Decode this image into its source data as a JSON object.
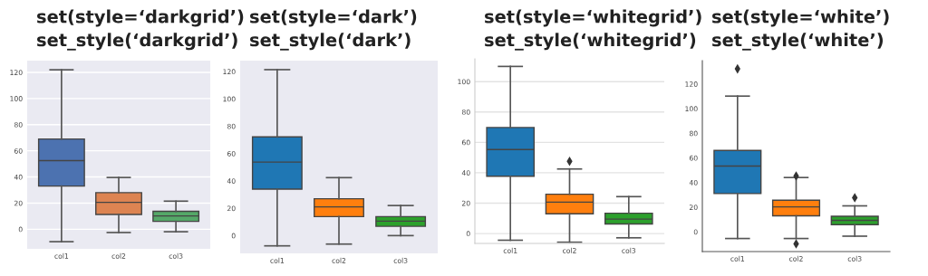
{
  "chart_data": [
    {
      "type": "box",
      "title": "set(style=‘darkgrid’)",
      "subtitle": "set_style(‘darkgrid’)",
      "categories": [
        "col1",
        "col2",
        "col3"
      ],
      "colors": [
        "#4c72b0",
        "#dd8452",
        "#55a868"
      ],
      "ylim": [
        -15,
        129
      ],
      "yticks": [
        0,
        20,
        40,
        60,
        80,
        100,
        120
      ],
      "grid": "y",
      "boxes": [
        {
          "low": -9.5,
          "q1": 33,
          "median": 52.5,
          "q3": 69,
          "high": 122
        },
        {
          "low": -2.5,
          "q1": 11.3,
          "median": 20.6,
          "q3": 28,
          "high": 39.6
        },
        {
          "low": -1.9,
          "q1": 6,
          "median": 10.2,
          "q3": 13.7,
          "high": 21.5
        }
      ]
    },
    {
      "type": "box",
      "title": "set(style=‘dark’)",
      "subtitle": "set_style(‘dark’)",
      "categories": [
        "col1",
        "col2",
        "col3"
      ],
      "colors": [
        "#1f77b4",
        "#ff7f0e",
        "#2ca02c"
      ],
      "ylim": [
        -13,
        128
      ],
      "yticks": [
        0,
        20,
        40,
        60,
        80,
        100,
        120
      ],
      "grid": false,
      "boxes": [
        {
          "low": -7.5,
          "q1": 34,
          "median": 53.8,
          "q3": 72.2,
          "high": 121.4
        },
        {
          "low": -6.2,
          "q1": 13.9,
          "median": 21,
          "q3": 27,
          "high": 42.4
        },
        {
          "low": 0,
          "q1": 6.8,
          "median": 10.6,
          "q3": 13.9,
          "high": 22
        }
      ]
    },
    {
      "type": "box",
      "title": "set(style=‘whitegrid’)",
      "subtitle": "set_style(‘whitegrid’)",
      "categories": [
        "col1",
        "col2",
        "col3"
      ],
      "colors": [
        "#1f77b4",
        "#ff7f0e",
        "#2ca02c"
      ],
      "ylim": [
        -6.5,
        115
      ],
      "yticks": [
        0,
        20,
        40,
        60,
        80,
        100
      ],
      "grid": "y",
      "boxes": [
        {
          "low": -4.4,
          "q1": 37.7,
          "median": 55.3,
          "q3": 69.8,
          "high": 110
        },
        {
          "low": -5.7,
          "q1": 13,
          "median": 20.7,
          "q3": 25.9,
          "high": 42.5,
          "outliers": [
            47.6
          ]
        },
        {
          "low": -2.8,
          "q1": 6.3,
          "median": 9.5,
          "q3": 13.4,
          "high": 24.3
        }
      ]
    },
    {
      "type": "box",
      "title": "set(style=‘white’)",
      "subtitle": "set_style(‘white’)",
      "categories": [
        "col1",
        "col2",
        "col3"
      ],
      "colors": [
        "#1f77b4",
        "#ff7f0e",
        "#2ca02c"
      ],
      "ylim": [
        -16,
        139
      ],
      "yticks": [
        0,
        20,
        40,
        60,
        80,
        100,
        120
      ],
      "grid": false,
      "boxes": [
        {
          "low": -5.4,
          "q1": 31.1,
          "median": 53.4,
          "q3": 66.1,
          "high": 110.2,
          "outliers": [
            132.3
          ]
        },
        {
          "low": -5.4,
          "q1": 13,
          "median": 20.3,
          "q3": 25.7,
          "high": 44.1,
          "outliers": [
            45.3,
            -9.8
          ]
        },
        {
          "low": -3.5,
          "q1": 5.9,
          "median": 9.3,
          "q3": 12.7,
          "high": 21.1,
          "outliers": [
            27.7
          ]
        }
      ]
    }
  ]
}
